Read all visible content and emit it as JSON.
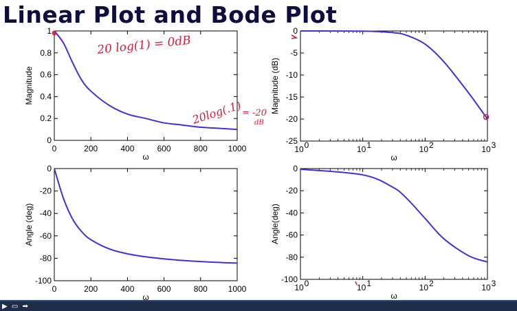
{
  "slide": {
    "title": "Linear Plot and Bode Plot"
  },
  "annotations": {
    "top_left_1": "20 log(1) = 0dB",
    "top_left_2a": "20log(.1)",
    "top_left_2b": "= -20",
    "top_left_2c": "dB"
  },
  "nav": {
    "icon_1": "▶",
    "icon_2": "▭",
    "icon_3": "➡"
  },
  "chart_data": [
    {
      "type": "line",
      "name": "linear-magnitude",
      "xlabel": "ω",
      "ylabel": "Magnitude",
      "xlim": [
        0,
        1000
      ],
      "ylim": [
        0,
        1
      ],
      "xscale": "linear",
      "xticks": [
        0,
        200,
        400,
        600,
        800,
        1000
      ],
      "yticks": [
        0,
        0.2,
        0.4,
        0.6,
        0.8,
        1
      ],
      "yticklabels": [
        "0",
        "0.2",
        "0.4",
        "0.6",
        "0.8",
        "1"
      ],
      "x": [
        0,
        50,
        100,
        150,
        200,
        300,
        400,
        500,
        600,
        700,
        800,
        900,
        1000
      ],
      "y": [
        1,
        0.89,
        0.71,
        0.55,
        0.45,
        0.32,
        0.24,
        0.2,
        0.16,
        0.14,
        0.12,
        0.11,
        0.1
      ],
      "color": "#4a2bd4"
    },
    {
      "type": "line",
      "name": "bode-magnitude",
      "xlabel": "ω",
      "ylabel": "Magnitude (dB)",
      "xlim": [
        1,
        1000
      ],
      "ylim": [
        -25,
        0
      ],
      "xscale": "log",
      "xticks": [
        1,
        10,
        100,
        1000
      ],
      "xticklabels": [
        "10^0",
        "10^1",
        "10^2",
        "10^3"
      ],
      "yticks": [
        0,
        -5,
        -10,
        -15,
        -20,
        -25
      ],
      "x": [
        1,
        10,
        30,
        50,
        100,
        200,
        500,
        1000
      ],
      "y": [
        0,
        -0.04,
        -0.37,
        -0.97,
        -3.0,
        -7.0,
        -14.1,
        -20.0
      ],
      "color": "#4a2bd4"
    },
    {
      "type": "line",
      "name": "linear-phase",
      "xlabel": "ω",
      "ylabel": "Angle (deg)",
      "xlim": [
        0,
        1000
      ],
      "ylim": [
        -100,
        0
      ],
      "xscale": "linear",
      "xticks": [
        0,
        200,
        400,
        600,
        800,
        1000
      ],
      "yticks": [
        0,
        -20,
        -40,
        -60,
        -80,
        -100
      ],
      "x": [
        0,
        50,
        100,
        150,
        200,
        300,
        400,
        500,
        600,
        700,
        800,
        900,
        1000
      ],
      "y": [
        0,
        -26.6,
        -45,
        -56.3,
        -63.4,
        -71.6,
        -76,
        -78.7,
        -80.5,
        -81.9,
        -82.9,
        -83.7,
        -84.3
      ],
      "color": "#4a2bd4"
    },
    {
      "type": "line",
      "name": "bode-phase",
      "xlabel": "ω",
      "ylabel": "Angle(deg)",
      "xlim": [
        1,
        1000
      ],
      "ylim": [
        -100,
        0
      ],
      "xscale": "log",
      "xticks": [
        1,
        10,
        100,
        1000
      ],
      "xticklabels": [
        "10^0",
        "10^1",
        "10^2",
        "10^3"
      ],
      "yticks": [
        0,
        -20,
        -40,
        -60,
        -80,
        -100
      ],
      "x": [
        1,
        10,
        30,
        50,
        100,
        200,
        500,
        1000
      ],
      "y": [
        -0.6,
        -5.7,
        -16.7,
        -26.6,
        -45,
        -63.4,
        -78.7,
        -84.3
      ],
      "color": "#4a2bd4"
    }
  ]
}
